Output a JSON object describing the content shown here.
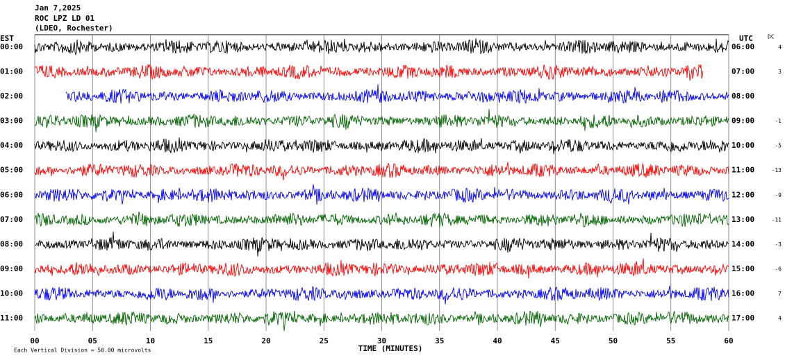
{
  "chart_data": {
    "type": "helicorder",
    "title": "Jan 7,2025",
    "subtitle": "ROC LPZ LD 01",
    "station": "(LDEO, Rochester)",
    "left_label": "EST",
    "right_label": "UTC",
    "dc_label": "DC",
    "xlabel": "TIME (MINUTES)",
    "note": "Each Vertical Division =   50.00 microvolts",
    "xlim": [
      0,
      60
    ],
    "xticks": [
      {
        "value": 0,
        "label": "00"
      },
      {
        "value": 5,
        "label": "05"
      },
      10,
      15,
      20,
      25,
      30,
      35,
      40,
      45,
      50,
      55,
      60
    ],
    "rows": [
      {
        "est": "00:00",
        "utc": "06:00",
        "dc": 4,
        "color": "#000000",
        "start": 0,
        "end": 60
      },
      {
        "est": "01:00",
        "utc": "07:00",
        "dc": 3,
        "color": "#ff0000",
        "start": 0,
        "end": 57.8
      },
      {
        "est": "02:00",
        "utc": "08:00",
        "dc": null,
        "color": "#0000ff",
        "start": 2.7,
        "end": 60
      },
      {
        "est": "03:00",
        "utc": "09:00",
        "dc": -1,
        "color": "#006400",
        "start": 0,
        "end": 60
      },
      {
        "est": "04:00",
        "utc": "10:00",
        "dc": -5,
        "color": "#000000",
        "start": 0,
        "end": 60
      },
      {
        "est": "05:00",
        "utc": "11:00",
        "dc": -13,
        "color": "#ff0000",
        "start": 0,
        "end": 60
      },
      {
        "est": "06:00",
        "utc": "12:00",
        "dc": -9,
        "color": "#0000ff",
        "start": 0,
        "end": 60
      },
      {
        "est": "07:00",
        "utc": "13:00",
        "dc": -11,
        "color": "#006400",
        "start": 0,
        "end": 60
      },
      {
        "est": "08:00",
        "utc": "14:00",
        "dc": -3,
        "color": "#000000",
        "start": 0,
        "end": 60
      },
      {
        "est": "09:00",
        "utc": "15:00",
        "dc": -6,
        "color": "#ff0000",
        "start": 0,
        "end": 60
      },
      {
        "est": "10:00",
        "utc": "16:00",
        "dc": 7,
        "color": "#0000ff",
        "start": 0,
        "end": 60
      },
      {
        "est": "11:00",
        "utc": "17:00",
        "dc": 4,
        "color": "#006400",
        "start": 0,
        "end": 60
      }
    ]
  }
}
